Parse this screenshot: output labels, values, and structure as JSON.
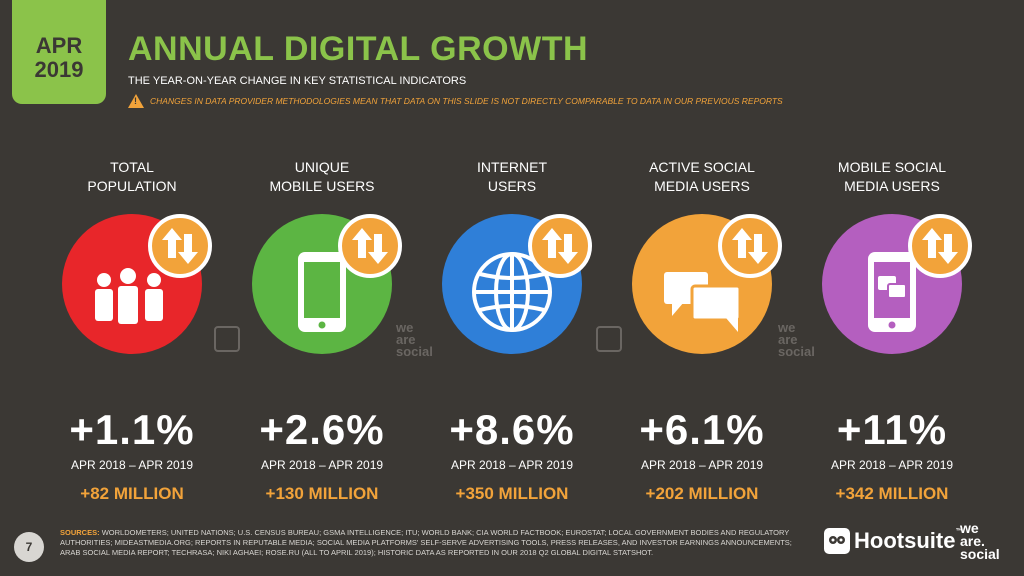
{
  "date_tab": {
    "month": "APR",
    "year": "2019"
  },
  "header": {
    "title": "ANNUAL DIGITAL GROWTH",
    "subtitle": "THE YEAR-ON-YEAR CHANGE IN KEY STATISTICAL INDICATORS",
    "warning": "CHANGES IN DATA PROVIDER METHODOLOGIES MEAN THAT DATA ON THIS SLIDE IS NOT DIRECTLY COMPARABLE TO DATA IN OUR PREVIOUS REPORTS",
    "warning_symbol": "!"
  },
  "indicators": [
    {
      "label_line1": "TOTAL",
      "label_line2": "POPULATION",
      "value": "+1.1%",
      "period": "APR 2018 – APR 2019",
      "absolute": "+82 MILLION",
      "color": "#e8262a",
      "icon": "people-icon"
    },
    {
      "label_line1": "UNIQUE",
      "label_line2": "MOBILE USERS",
      "value": "+2.6%",
      "period": "APR 2018 – APR 2019",
      "absolute": "+130 MILLION",
      "color": "#5cb543",
      "icon": "phone-icon"
    },
    {
      "label_line1": "INTERNET",
      "label_line2": "USERS",
      "value": "+8.6%",
      "period": "APR 2018 – APR 2019",
      "absolute": "+350 MILLION",
      "color": "#2f7fd8",
      "icon": "globe-icon"
    },
    {
      "label_line1": "ACTIVE SOCIAL",
      "label_line2": "MEDIA USERS",
      "value": "+6.1%",
      "period": "APR 2018 – APR 2019",
      "absolute": "+202 MILLION",
      "color": "#f2a33a",
      "icon": "chat-bubbles-icon"
    },
    {
      "label_line1": "MOBILE SOCIAL",
      "label_line2": "MEDIA USERS",
      "value": "+11%",
      "period": "APR 2018 – APR 2019",
      "absolute": "+342 MILLION",
      "color": "#b45fbf",
      "icon": "mobile-chat-icon"
    }
  ],
  "watermark": {
    "line1": "we",
    "line2": "are",
    "line3": "social"
  },
  "footer": {
    "page_number": "7",
    "sources_label": "SOURCES:",
    "sources_text": "WORLDOMETERS; UNITED NATIONS; U.S. CENSUS BUREAU; GSMA INTELLIGENCE; ITU; WORLD BANK; CIA WORLD FACTBOOK; EUROSTAT; LOCAL GOVERNMENT BODIES AND REGULATORY AUTHORITIES; MIDEASTMEDIA.ORG; REPORTS IN REPUTABLE MEDIA; SOCIAL MEDIA PLATFORMS' SELF-SERVE ADVERTISING TOOLS, PRESS RELEASES, AND INVESTOR EARNINGS ANNOUNCEMENTS; ARAB SOCIAL MEDIA REPORT; TECHRASA; NIKI AGHAEI; ROSE.RU (ALL TO APRIL 2019); HISTORIC DATA AS REPORTED IN OUR 2018 Q2 GLOBAL DIGITAL STATSHOT.",
    "hootsuite": "Hootsuite",
    "hootsuite_tm": "™",
    "ws_line1": "we",
    "ws_line2": "are.",
    "ws_line3": "social"
  },
  "colors": {
    "background": "#3b3834",
    "accent_green": "#8bc34a",
    "accent_orange": "#f2a33a"
  }
}
